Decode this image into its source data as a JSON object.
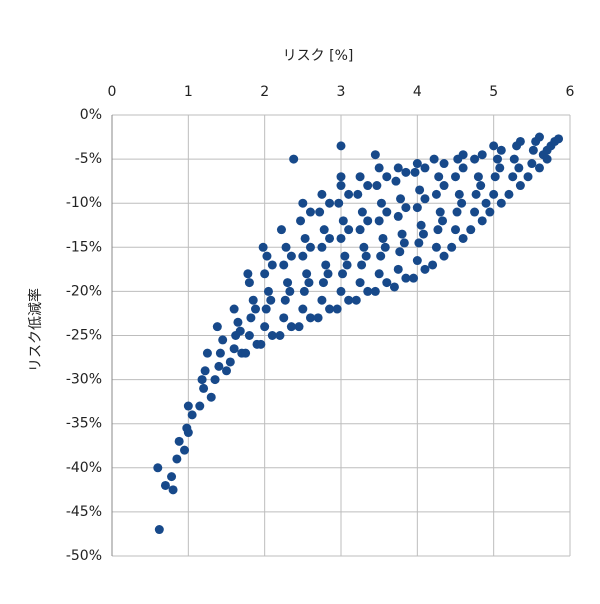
{
  "chart_data": {
    "type": "scatter",
    "x_label": "リスク  [%]",
    "y_label": "リスク低減率",
    "color": "#17498a",
    "grid": true,
    "xlim": [
      0,
      6
    ],
    "xticks": [
      0,
      1,
      2,
      3,
      4,
      5,
      6
    ],
    "ylim": [
      -50,
      0
    ],
    "yticks": [
      {
        "value": 0,
        "label": "0%"
      },
      {
        "value": -5,
        "label": "-5%"
      },
      {
        "value": -10,
        "label": "-10%"
      },
      {
        "value": -15,
        "label": "-15%"
      },
      {
        "value": -20,
        "label": "-20%"
      },
      {
        "value": -25,
        "label": "-25%"
      },
      {
        "value": -30,
        "label": "-30%"
      },
      {
        "value": -35,
        "label": "-35%"
      },
      {
        "value": -40,
        "label": "-40%"
      },
      {
        "value": -45,
        "label": "-45%"
      },
      {
        "value": -50,
        "label": "-50%"
      }
    ],
    "x": [
      0.62,
      0.6,
      0.7,
      0.8,
      0.78,
      0.85,
      0.88,
      0.95,
      1.0,
      1.05,
      1.0,
      0.98,
      1.15,
      1.2,
      1.22,
      1.25,
      1.18,
      1.3,
      1.35,
      1.4,
      1.42,
      1.45,
      1.38,
      1.5,
      1.55,
      1.6,
      1.62,
      1.65,
      1.6,
      1.7,
      1.68,
      1.75,
      1.8,
      1.82,
      1.85,
      1.8,
      1.78,
      1.9,
      1.88,
      1.95,
      2.0,
      2.02,
      2.05,
      2.0,
      2.03,
      1.98,
      2.1,
      2.08,
      2.1,
      2.2,
      2.25,
      2.27,
      2.3,
      2.25,
      2.28,
      2.22,
      2.35,
      2.33,
      2.35,
      2.38,
      2.45,
      2.5,
      2.52,
      2.55,
      2.5,
      2.53,
      2.47,
      2.5,
      2.6,
      2.58,
      2.6,
      2.6,
      2.7,
      2.75,
      2.77,
      2.8,
      2.75,
      2.78,
      2.72,
      2.75,
      2.85,
      2.83,
      2.85,
      2.85,
      2.95,
      3.0,
      3.02,
      3.05,
      3.0,
      3.03,
      2.97,
      3.0,
      3.0,
      3.1,
      3.08,
      3.1,
      3.1,
      3.0,
      3.2,
      3.25,
      3.27,
      3.3,
      3.25,
      3.28,
      3.22,
      3.25,
      3.35,
      3.33,
      3.35,
      3.35,
      3.45,
      3.5,
      3.52,
      3.55,
      3.5,
      3.53,
      3.47,
      3.5,
      3.6,
      3.58,
      3.6,
      3.6,
      3.45,
      3.7,
      3.75,
      3.77,
      3.8,
      3.75,
      3.78,
      3.72,
      3.75,
      3.85,
      3.83,
      3.85,
      3.85,
      3.95,
      4.0,
      4.02,
      4.05,
      4.0,
      4.03,
      3.97,
      4.0,
      4.1,
      4.08,
      4.1,
      4.1,
      4.2,
      4.25,
      4.27,
      4.3,
      4.25,
      4.28,
      4.22,
      4.35,
      4.33,
      4.35,
      4.35,
      4.45,
      4.5,
      4.52,
      4.55,
      4.5,
      4.53,
      4.6,
      4.58,
      4.6,
      4.6,
      4.7,
      4.75,
      4.77,
      4.8,
      4.75,
      4.85,
      4.83,
      4.85,
      4.9,
      4.95,
      5.0,
      5.02,
      5.05,
      5.0,
      5.1,
      5.08,
      5.1,
      5.2,
      5.25,
      5.27,
      5.3,
      5.35,
      5.33,
      5.35,
      5.45,
      5.5,
      5.52,
      5.55,
      5.6,
      5.6,
      5.65,
      5.7,
      5.75,
      5.8,
      5.85,
      5.7
    ],
    "values": [
      -47,
      -40,
      -42,
      -42.5,
      -41,
      -39,
      -37,
      -38,
      -36,
      -34,
      -33,
      -35.5,
      -33,
      -31,
      -29,
      -27,
      -30,
      -32,
      -30,
      -28.5,
      -27,
      -25.5,
      -24,
      -29,
      -28,
      -26.5,
      -25,
      -23.5,
      -22,
      -27,
      -24.5,
      -27,
      -25,
      -23,
      -21,
      -19,
      -18,
      -26,
      -22,
      -26,
      -24,
      -22,
      -20,
      -18,
      -16,
      -15,
      -25,
      -21,
      -17,
      -25,
      -23,
      -21,
      -19,
      -17,
      -15,
      -13,
      -24,
      -20,
      -16,
      -5,
      -24,
      -22,
      -20,
      -18,
      -16,
      -14,
      -12,
      -10,
      -23,
      -19,
      -15,
      -11,
      -23,
      -21,
      -19,
      -17,
      -15,
      -13,
      -11,
      -9,
      -22,
      -18,
      -14,
      -10,
      -22,
      -20,
      -18,
      -16,
      -14,
      -12,
      -10,
      -8,
      -7,
      -21,
      -17,
      -13,
      -9,
      -3.5,
      -21,
      -19,
      -17,
      -15,
      -13,
      -11,
      -9,
      -7,
      -20,
      -16,
      -12,
      -8,
      -20,
      -18,
      -16,
      -14,
      -12,
      -10,
      -8,
      -6,
      -19,
      -15,
      -11,
      -7,
      -4.5,
      -19.5,
      -17.5,
      -15.5,
      -13.5,
      -11.5,
      -9.5,
      -7.5,
      -6,
      -18.5,
      -14.5,
      -10.5,
      -6.5,
      -18.5,
      -16.5,
      -14.5,
      -12.5,
      -10.5,
      -8.5,
      -6.5,
      -5.5,
      -17.5,
      -13.5,
      -9.5,
      -6,
      -17,
      -15,
      -13,
      -11,
      -9,
      -7,
      -5,
      -16,
      -12,
      -8,
      -5.5,
      -15,
      -13,
      -11,
      -9,
      -7,
      -5,
      -14,
      -10,
      -6,
      -4.5,
      -13,
      -11,
      -9,
      -7,
      -5,
      -12,
      -8,
      -4.5,
      -10,
      -11,
      -9,
      -7,
      -5,
      -3.5,
      -10,
      -6,
      -4,
      -9,
      -7,
      -5,
      -3.5,
      -8,
      -6,
      -3,
      -7,
      -5.5,
      -4,
      -3,
      -6,
      -2.5,
      -4.5,
      -4,
      -3.5,
      -3,
      -2.7,
      -5
    ]
  }
}
